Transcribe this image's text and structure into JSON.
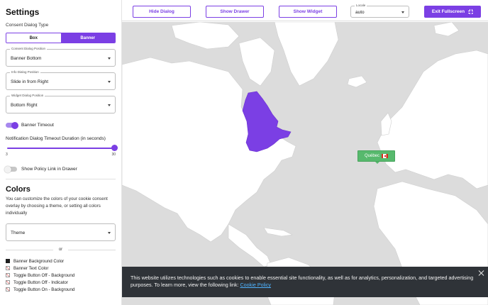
{
  "sidebar": {
    "title": "Settings",
    "consent_type_label": "Consent Dialog Type",
    "consent_type_options": [
      "Box",
      "Banner"
    ],
    "consent_type_selected": "Banner",
    "consent_position": {
      "label": "Consent Dialog Position",
      "value": "Banner Bottom"
    },
    "info_position": {
      "label": "Info Dialog Position",
      "value": "Slide in from Right"
    },
    "widget_position": {
      "label": "Widget Dialog Position",
      "value": "Bottom Right"
    },
    "banner_timeout": {
      "label": "Banner Timeout",
      "enabled": true
    },
    "timeout_duration": {
      "label": "Notification Dialog Timeout Duration (in seconds)",
      "min": "3",
      "max": "30",
      "value": 30
    },
    "policy_link": {
      "label": "Show Policy Link in Drawer",
      "enabled": false
    },
    "colors": {
      "title": "Colors",
      "description": "You can customize the colors of your cookie consent overlay by choosing a theme, or setting all colors individually",
      "theme_value": "Theme",
      "or_label": "or",
      "items": [
        {
          "label": "Banner Background Color",
          "swatch": "#1e1e1e"
        },
        {
          "label": "Banner Text Color",
          "swatch": "none"
        },
        {
          "label": "Toggle Button Off - Background",
          "swatch": "none"
        },
        {
          "label": "Toggle Button Off - Indicator",
          "swatch": "none"
        },
        {
          "label": "Toggle Button On - Background",
          "swatch": "none"
        }
      ]
    }
  },
  "topbar": {
    "hide_dialog": "Hide Dialog",
    "show_drawer": "Show Drawer",
    "show_widget": "Show Widget",
    "locale_label": "Locale",
    "locale_value": "auto",
    "exit_fullscreen": "Exit Fullscreen"
  },
  "map": {
    "highlight_region": "Québec",
    "tooltip_label": "Québec",
    "flag_icon": "canada-flag-icon",
    "highlight_color": "#7b3fe4",
    "land_color": "#ffffff",
    "water_color": "#dcdcdc"
  },
  "banner": {
    "text": "This website utilizes technologies such as cookies to enable essential site functionality, as well as for analytics, personalization, and targeted advertising purposes. To learn more, view the following link:",
    "link_text": "Cookie Policy"
  },
  "theme": {
    "accent": "#7b3fe4",
    "banner_bg": "#2f3338",
    "tooltip_bg": "#57b96d"
  }
}
